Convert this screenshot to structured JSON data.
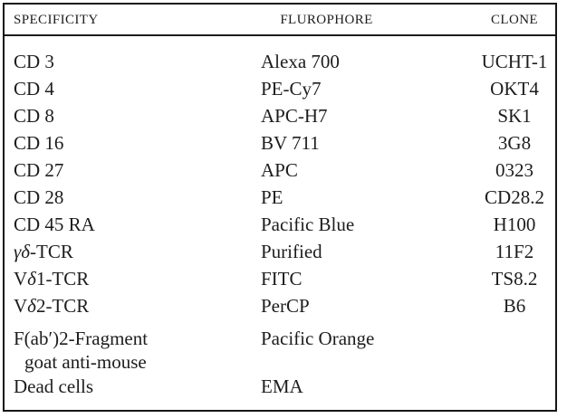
{
  "table": {
    "columns": [
      "SPECIFICITY",
      "FLUROPHORE",
      "CLONE"
    ],
    "rows": [
      {
        "spec_pre": "CD 3",
        "flurophore": "Alexa 700",
        "clone": "UCHT-1"
      },
      {
        "spec_pre": "CD 4",
        "flurophore": "PE-Cy7",
        "clone": "OKT4"
      },
      {
        "spec_pre": "CD 8",
        "flurophore": "APC-H7",
        "clone": "SK1"
      },
      {
        "spec_pre": "CD 16",
        "flurophore": "BV 711",
        "clone": "3G8"
      },
      {
        "spec_pre": "CD 27",
        "flurophore": "APC",
        "clone": "0323"
      },
      {
        "spec_pre": "CD 28",
        "flurophore": "PE",
        "clone": "CD28.2"
      },
      {
        "spec_pre": "CD 45 RA",
        "flurophore": "Pacific Blue",
        "clone": "H100"
      },
      {
        "spec_pre": "",
        "spec_italic": "γδ",
        "spec_rest": "-TCR",
        "flurophore": "Purified",
        "clone": "11F2"
      },
      {
        "spec_pre": "V",
        "spec_italic": "δ",
        "spec_rest": "1-TCR",
        "flurophore": "FITC",
        "clone": "TS8.2"
      },
      {
        "spec_pre": "V",
        "spec_italic": "δ",
        "spec_rest": "2-TCR",
        "flurophore": "PerCP",
        "clone": "B6"
      },
      {
        "spec_pre": "F(ab′)2-Fragment",
        "spec_line2": "goat anti-mouse",
        "flurophore": "Pacific Orange",
        "clone": ""
      },
      {
        "spec_pre": "Dead cells",
        "flurophore": "EMA",
        "clone": ""
      }
    ],
    "colors": {
      "text": "#1d1d1d",
      "border": "#161616",
      "background": "#ffffff"
    }
  }
}
